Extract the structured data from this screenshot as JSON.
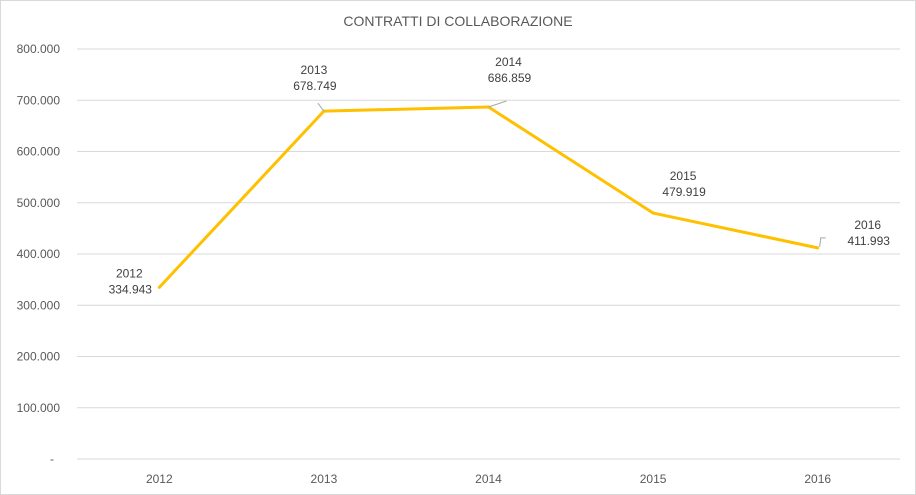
{
  "chart_data": {
    "type": "line",
    "title": "CONTRATTI DI COLLABORAZIONE",
    "categories": [
      "2012",
      "2013",
      "2014",
      "2015",
      "2016"
    ],
    "series": [
      {
        "name": "Contratti di collaborazione",
        "values": [
          334943,
          678749,
          686859,
          479919,
          411993
        ],
        "color": "#ffc000"
      }
    ],
    "data_labels": [
      {
        "category": "2012",
        "value": "334.943"
      },
      {
        "category": "2013",
        "value": "678.749"
      },
      {
        "category": "2014",
        "value": "686.859"
      },
      {
        "category": "2015",
        "value": "479.919"
      },
      {
        "category": "2016",
        "value": "411.993"
      }
    ],
    "y_ticks": [
      "-",
      "100.000",
      "200.000",
      "300.000",
      "400.000",
      "500.000",
      "600.000",
      "700.000",
      "800.000"
    ],
    "ylim": [
      0,
      800000
    ],
    "xlabel": "",
    "ylabel": "",
    "grid": true,
    "legend": "none"
  }
}
